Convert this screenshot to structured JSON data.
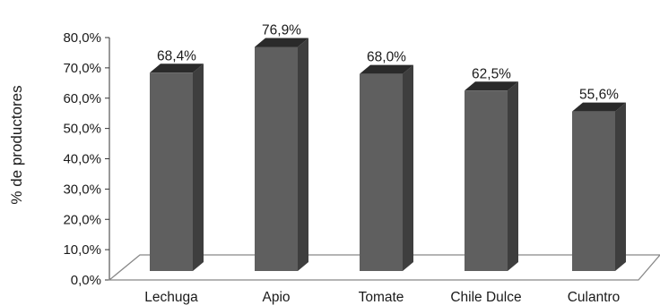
{
  "chart_data": {
    "type": "bar",
    "title": "",
    "xlabel": "",
    "ylabel": "% de productores",
    "categories": [
      "Lechuga",
      "Apio",
      "Tomate",
      "Chile Dulce",
      "Culantro"
    ],
    "values": [
      68.4,
      76.9,
      68.0,
      62.5,
      55.6
    ],
    "value_labels": [
      "68,4%",
      "76,9%",
      "68,0%",
      "62,5%",
      "55,6%"
    ],
    "ylim": [
      0,
      80
    ],
    "yticks": [
      "0,0%",
      "10,0%",
      "20,0%",
      "30,0%",
      "40,0%",
      "50,0%",
      "60,0%",
      "70,0%",
      "80,0%"
    ],
    "style": "3d-column",
    "grid": false,
    "legend": "none",
    "colors": {
      "front": "#5f5f5f",
      "side": "#3e3e3e",
      "top": "#2a2a2a",
      "floor": "#888888"
    }
  }
}
